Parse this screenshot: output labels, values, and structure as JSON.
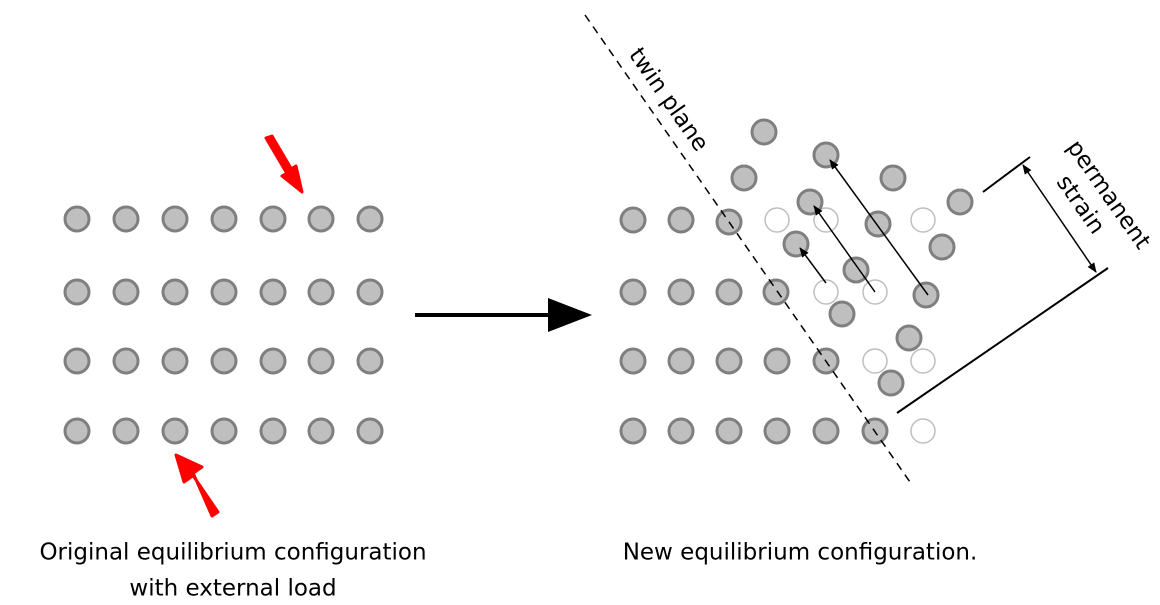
{
  "labels": {
    "twin_plane": "twin plane",
    "strain_line1": "permanent",
    "strain_line2": "strain"
  },
  "captions": {
    "left_line1": "Original equilibrium configuration",
    "left_line2": "with external load",
    "right": "New equilibrium configuration."
  }
}
